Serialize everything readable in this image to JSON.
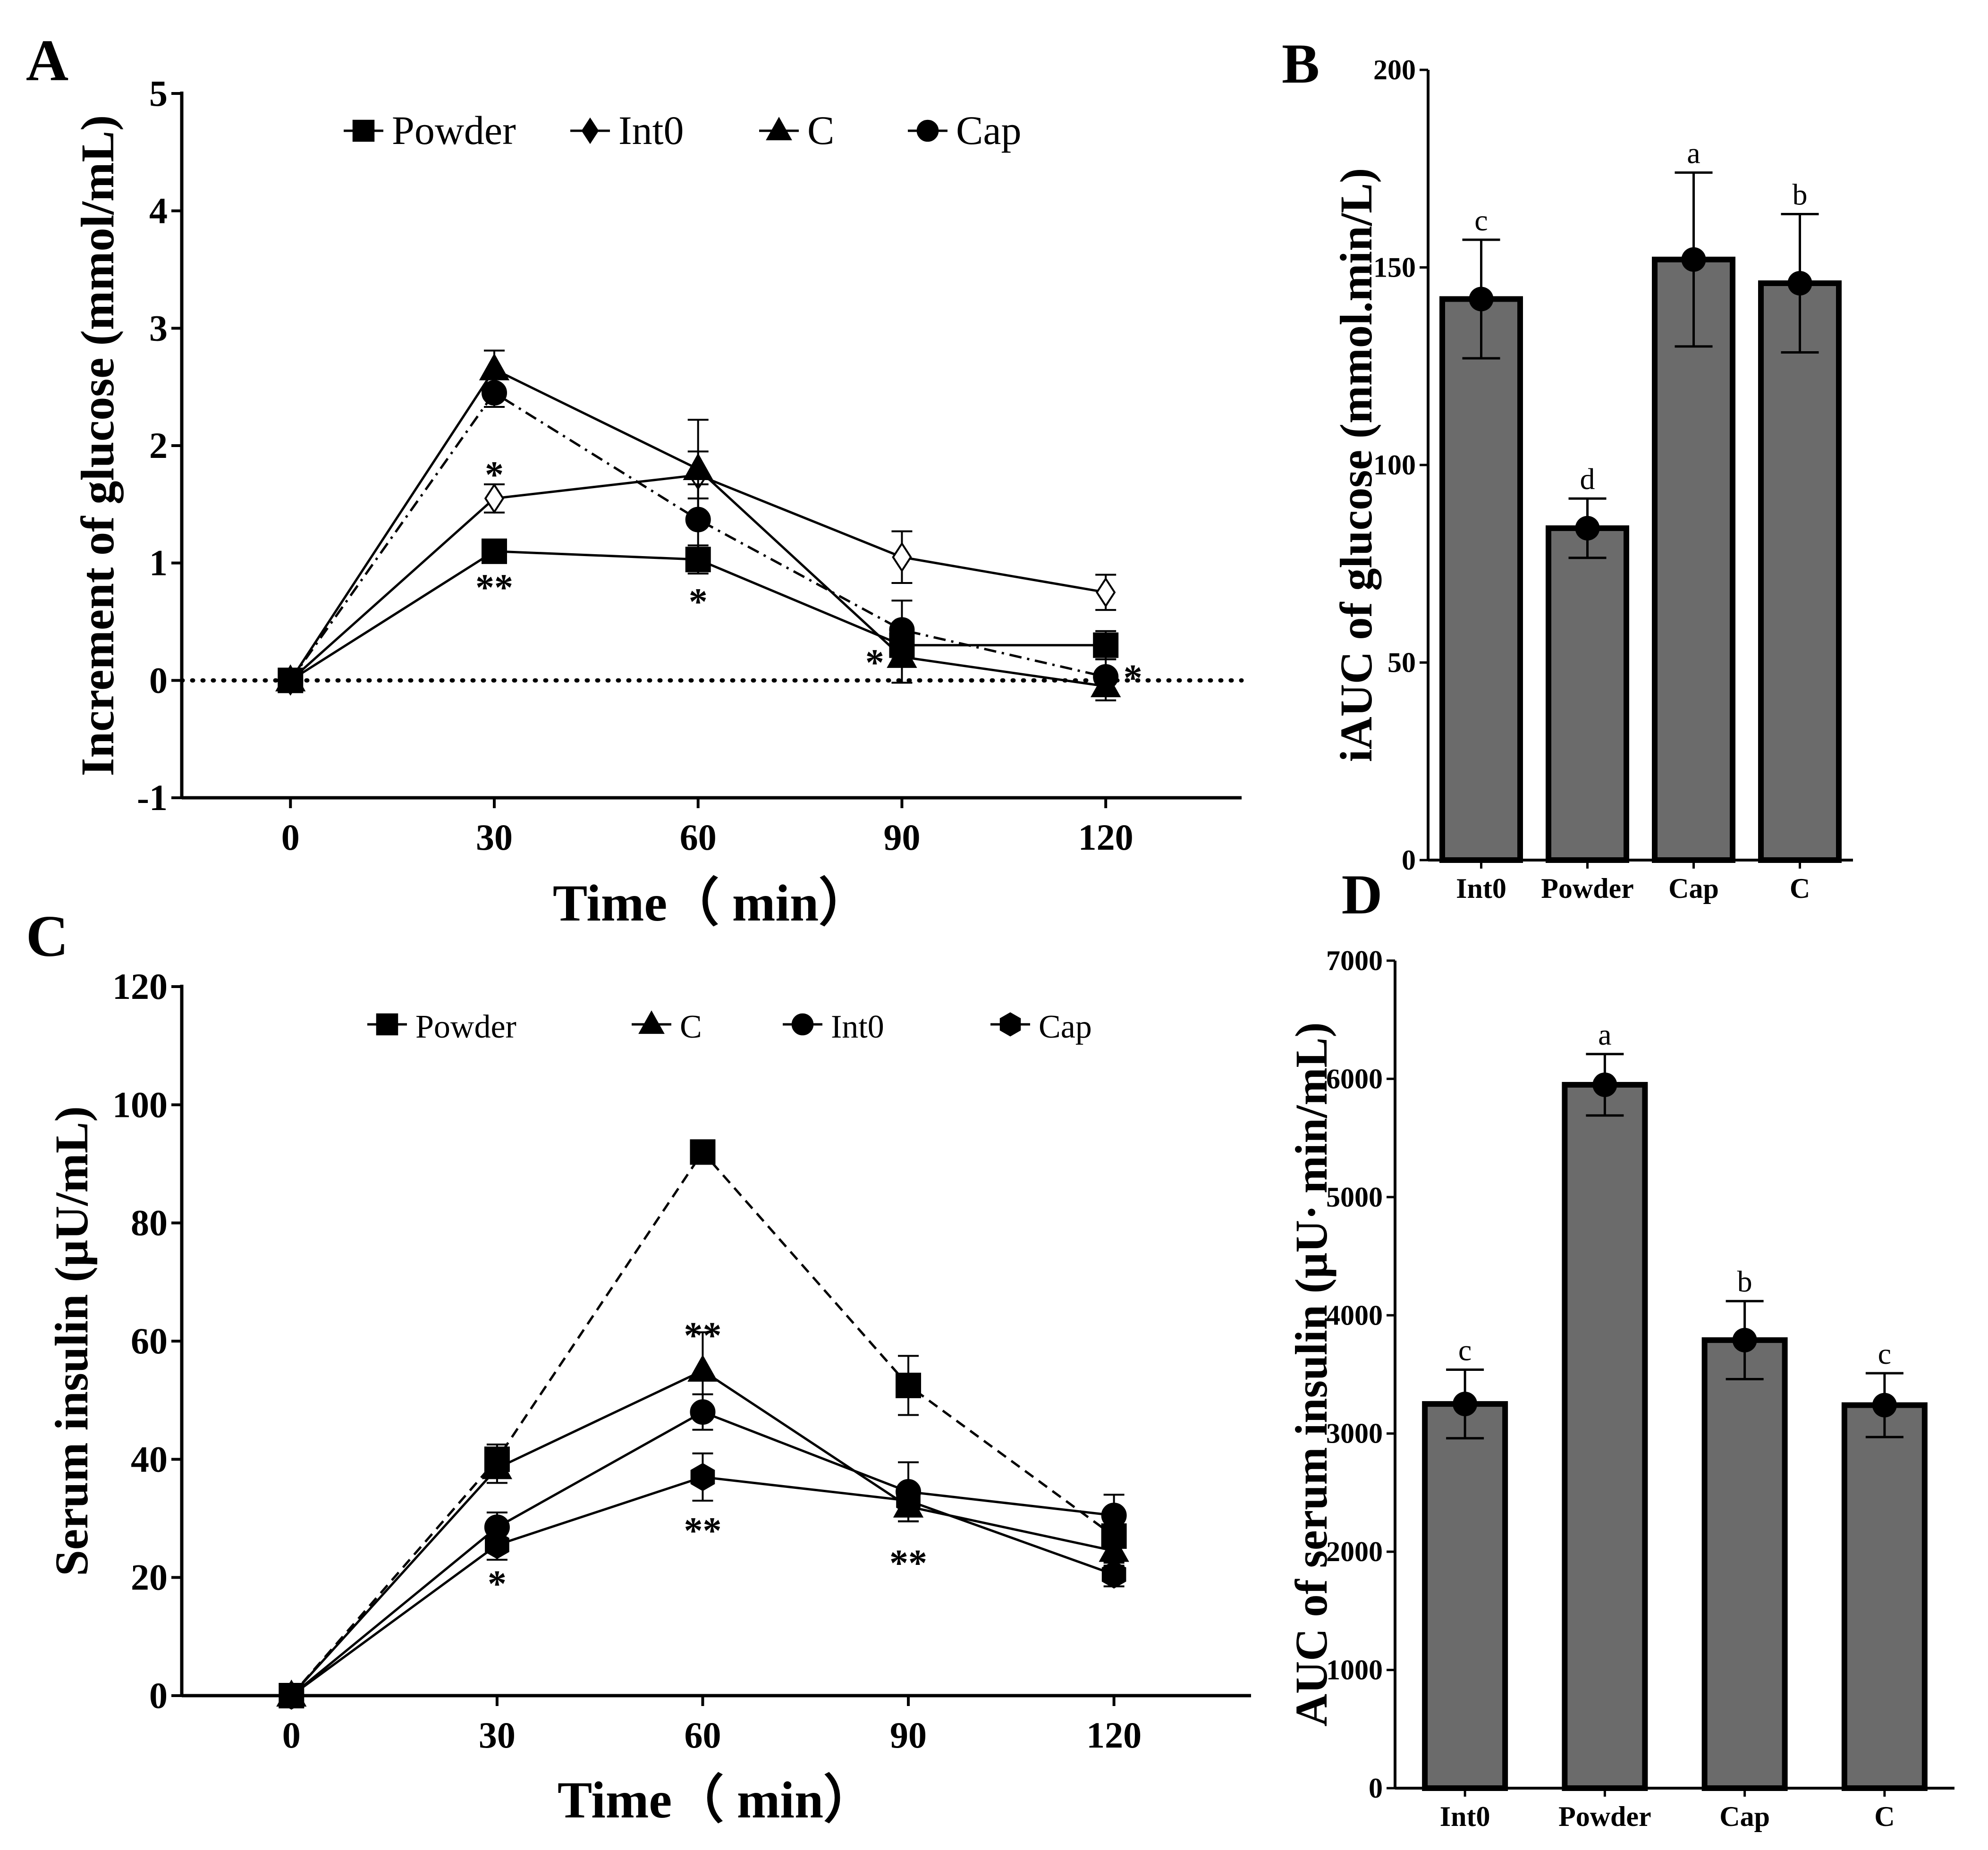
{
  "figure": {
    "panels": [
      "A",
      "B",
      "C",
      "D"
    ]
  },
  "colors": {
    "axis": "#000000",
    "bar_fill": "#6b6b6b",
    "marker": "#000000",
    "background": "#ffffff"
  },
  "chart_data": [
    {
      "panel": "A",
      "type": "line",
      "xlabel": "Time（ min）",
      "ylabel": "Increment of glucose (mmol/mL)",
      "x": [
        0,
        30,
        60,
        90,
        120
      ],
      "xticks": [
        "0",
        "30",
        "60",
        "90",
        "120"
      ],
      "yticks": [
        "-1",
        "0",
        "1",
        "2",
        "3",
        "4",
        "5"
      ],
      "xlim": [
        -16,
        140
      ],
      "ylim": [
        -1,
        5
      ],
      "reference_line": 0,
      "legend_position": "top-center",
      "series": [
        {
          "name": "Powder",
          "marker": "square",
          "line": "solid",
          "values": [
            0,
            1.1,
            1.03,
            0.3,
            0.3
          ],
          "errors": [
            0,
            0.06,
            0.12,
            0.1,
            0.12
          ]
        },
        {
          "name": "Int0",
          "marker": "diamond",
          "line": "solid",
          "values": [
            0,
            1.55,
            1.75,
            1.05,
            0.75
          ],
          "errors": [
            0,
            0.12,
            0.2,
            0.22,
            0.15
          ]
        },
        {
          "name": "C",
          "marker": "triangle",
          "line": "solid",
          "values": [
            0,
            2.65,
            1.8,
            0.2,
            -0.05
          ],
          "errors": [
            0,
            0.16,
            0.42,
            0.22,
            0.12
          ]
        },
        {
          "name": "Cap",
          "marker": "circle",
          "line": "dashdot",
          "values": [
            0,
            2.45,
            1.37,
            0.43,
            0.03
          ],
          "errors": [
            0,
            0.12,
            0.3,
            0.25,
            0.15
          ]
        }
      ],
      "annotations": [
        {
          "text": "*",
          "x": 30,
          "y": 1.78
        },
        {
          "text": "**",
          "x": 30,
          "y": 0.82
        },
        {
          "text": "*",
          "x": 60,
          "y": 0.7
        },
        {
          "text": "*",
          "x": 86,
          "y": 0.18
        },
        {
          "text": "*",
          "x": 124,
          "y": 0.05
        }
      ]
    },
    {
      "panel": "B",
      "type": "bar",
      "ylabel": "iAUC of glucose (mmol.min/L)",
      "categories": [
        "Int0",
        "Powder",
        "Cap",
        "C"
      ],
      "values": [
        142,
        84,
        152,
        146
      ],
      "errors": [
        15,
        7.5,
        22,
        17.5
      ],
      "letters": [
        "c",
        "d",
        "a",
        "b"
      ],
      "ylim": [
        0,
        200
      ],
      "yticks": [
        "0",
        "50",
        "100",
        "150",
        "200"
      ]
    },
    {
      "panel": "C",
      "type": "line",
      "xlabel": "Time（ min）",
      "ylabel": "Serum insulin (μU/mL)",
      "x": [
        0,
        30,
        60,
        90,
        120
      ],
      "xticks": [
        "0",
        "30",
        "60",
        "90",
        "120"
      ],
      "yticks": [
        "0",
        "20",
        "40",
        "60",
        "80",
        "100",
        "120"
      ],
      "xlim": [
        -16,
        140
      ],
      "ylim": [
        0,
        120
      ],
      "legend_position": "top-center",
      "series": [
        {
          "name": "Powder",
          "marker": "square",
          "line": "dashed",
          "values": [
            0,
            40,
            92,
            52.5,
            27
          ],
          "errors": [
            0,
            2.5,
            0,
            5,
            3
          ]
        },
        {
          "name": "C",
          "marker": "triangle",
          "line": "solid",
          "values": [
            0,
            38.5,
            55,
            32,
            24.5
          ],
          "errors": [
            0,
            2.5,
            6.5,
            2.5,
            2.5
          ]
        },
        {
          "name": "Int0",
          "marker": "circle",
          "line": "solid",
          "values": [
            0,
            28.5,
            48,
            34.5,
            30.5
          ],
          "errors": [
            0,
            2.5,
            3,
            5,
            3.5
          ]
        },
        {
          "name": "Cap",
          "marker": "hexagon",
          "line": "solid",
          "values": [
            0,
            25.5,
            37,
            33,
            20.5
          ],
          "errors": [
            0,
            2.5,
            4,
            2.5,
            2
          ]
        }
      ],
      "annotations": [
        {
          "text": "*",
          "x": 30,
          "y": 19.5
        },
        {
          "text": "**",
          "x": 60,
          "y": 61.5
        },
        {
          "text": "**",
          "x": 60,
          "y": 28.5
        },
        {
          "text": "**",
          "x": 90,
          "y": 23
        }
      ]
    },
    {
      "panel": "D",
      "type": "bar",
      "ylabel": "AUC of serum insulin (μU· min/mL)",
      "categories": [
        "Int0",
        "Powder",
        "Cap",
        "C"
      ],
      "values": [
        3250,
        5950,
        3790,
        3240
      ],
      "errors": [
        290,
        260,
        330,
        270
      ],
      "letters": [
        "c",
        "a",
        "b",
        "c"
      ],
      "ylim": [
        0,
        7000
      ],
      "yticks": [
        "0",
        "1000",
        "2000",
        "3000",
        "4000",
        "5000",
        "6000",
        "7000"
      ]
    }
  ]
}
